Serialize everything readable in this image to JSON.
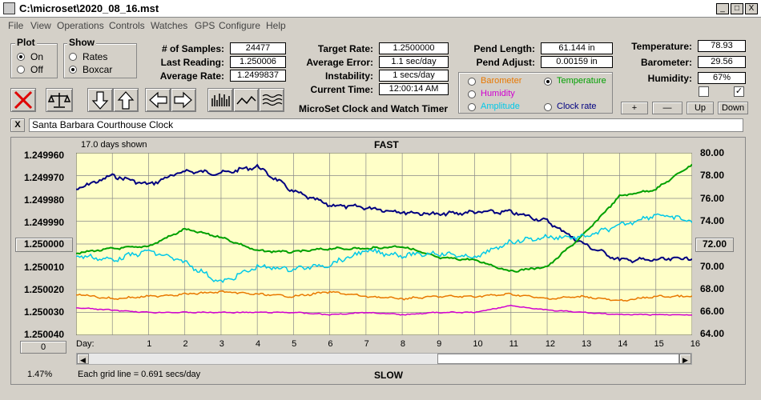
{
  "window": {
    "title": "C:\\microset\\2020_08_16.mst",
    "min": "_",
    "max": "□",
    "close": "X"
  },
  "menu": [
    "File",
    "View",
    "Operations",
    "Controls",
    "Watches",
    "GPS",
    "Configure",
    "Help"
  ],
  "plot": {
    "title": "Plot",
    "on": "On",
    "off": "Off",
    "selected": "On"
  },
  "show": {
    "title": "Show",
    "rates": "Rates",
    "boxcar": "Boxcar",
    "selected": "Boxcar"
  },
  "stats": {
    "samples_label": "# of Samples:",
    "samples": "24477",
    "last_label": "Last Reading:",
    "last": "1.250006",
    "avg_label": "Average Rate:",
    "avg": "1.2499837",
    "target_label": "Target Rate:",
    "target": "1.2500000",
    "avgerr_label": "Average Error:",
    "avgerr": "1.1 sec/day",
    "instab_label": "Instability:",
    "instab": "1 secs/day",
    "time_label": "Current Time:",
    "time": "12:00:14 AM",
    "pendlen_label": "Pend Length:",
    "pendlen": "61.144 in",
    "pendadj_label": "Pend Adjust:",
    "pendadj": "0.00159 in",
    "temp_label": "Temperature:",
    "temp": "78.93",
    "baro_label": "Barometer:",
    "baro": "29.56",
    "hum_label": "Humidity:",
    "hum": "67%"
  },
  "app_title": "MicroSet Clock and Watch Timer",
  "overlay": {
    "barometer": "Barometer",
    "temperature": "Temperature",
    "humidity": "Humidity",
    "amplitude": "Amplitude",
    "clockrate": "Clock rate",
    "selected": "Temperature",
    "colors": {
      "barometer": "#e87800",
      "temperature": "#00a000",
      "humidity": "#d000d0",
      "amplitude": "#00c8e8",
      "clockrate": "#000080"
    }
  },
  "scale_buttons": {
    "plus": "+",
    "minus": "—",
    "up": "Up",
    "down": "Down"
  },
  "checks": {
    "left": "",
    "right": "✓"
  },
  "clock_name": "Santa Barbara Courthouse Clock",
  "chart": {
    "days_shown": "17.0 days shown",
    "fast": "FAST",
    "slow": "SLOW",
    "grid_note": "Each grid line = 0.691 secs/day",
    "pct": "1.47%",
    "center_rate": "1.250000",
    "center_temp": "72.00",
    "zero_btn": "0",
    "day_label": "Day:",
    "left_ticks": [
      "1.249960",
      "1.249970",
      "1.249980",
      "1.249990",
      "1.250000",
      "1.250010",
      "1.250020",
      "1.250030",
      "1.250040"
    ],
    "right_ticks": [
      "80.00",
      "78.00",
      "76.00",
      "74.00",
      "72.00",
      "70.00",
      "68.00",
      "66.00",
      "64.00"
    ],
    "days": [
      "1",
      "2",
      "3",
      "4",
      "5",
      "6",
      "7",
      "8",
      "9",
      "10",
      "11",
      "12",
      "13",
      "14",
      "15",
      "16"
    ]
  },
  "chart_data": {
    "type": "line",
    "x_label": "Day",
    "x": [
      0,
      1,
      2,
      3,
      4,
      5,
      6,
      7,
      8,
      9,
      10,
      11,
      12,
      13,
      14,
      15,
      16,
      17
    ],
    "ylim_rate": [
      1.24996,
      1.25004
    ],
    "ylim_temp": [
      64,
      80
    ],
    "series": [
      {
        "name": "Clock rate",
        "color": "#000080",
        "values": [
          1.249976,
          1.24997,
          1.249974,
          1.249968,
          1.249969,
          1.249966,
          1.249977,
          1.249983,
          1.249984,
          1.249986,
          1.249987,
          1.249986,
          1.249986,
          1.24999,
          1.25,
          1.250007,
          1.250007,
          1.250006
        ]
      },
      {
        "name": "Temperature",
        "color": "#00a000",
        "values": [
          71.2,
          71.6,
          71.8,
          73.3,
          72.6,
          71.4,
          71.3,
          71.6,
          71.6,
          71.8,
          70.8,
          70.6,
          69.6,
          70.0,
          72.8,
          76.2,
          76.8,
          79.0
        ]
      },
      {
        "name": "Amplitude",
        "color": "#00c8e8",
        "values": [
          71.0,
          70.6,
          71.4,
          70.4,
          68.6,
          70.0,
          69.8,
          70.2,
          71.4,
          71.0,
          71.2,
          70.8,
          72.2,
          72.6,
          72.6,
          73.6,
          74.6,
          74.0
        ]
      },
      {
        "name": "Barometer",
        "color": "#e87800",
        "values": [
          1.250022,
          1.250024,
          1.250023,
          1.250022,
          1.250021,
          1.250022,
          1.250023,
          1.250021,
          1.250023,
          1.250024,
          1.250023,
          1.250023,
          1.250022,
          1.250024,
          1.250023,
          1.250025,
          1.250023,
          1.250023
        ]
      },
      {
        "name": "Humidity",
        "color": "#d000d0",
        "values": [
          1.250028,
          1.250029,
          1.25003,
          1.25003,
          1.25003,
          1.25003,
          1.25003,
          1.250031,
          1.25003,
          1.250031,
          1.25003,
          1.25003,
          1.250027,
          1.250029,
          1.25003,
          1.250031,
          1.250031,
          1.250031
        ]
      }
    ]
  }
}
